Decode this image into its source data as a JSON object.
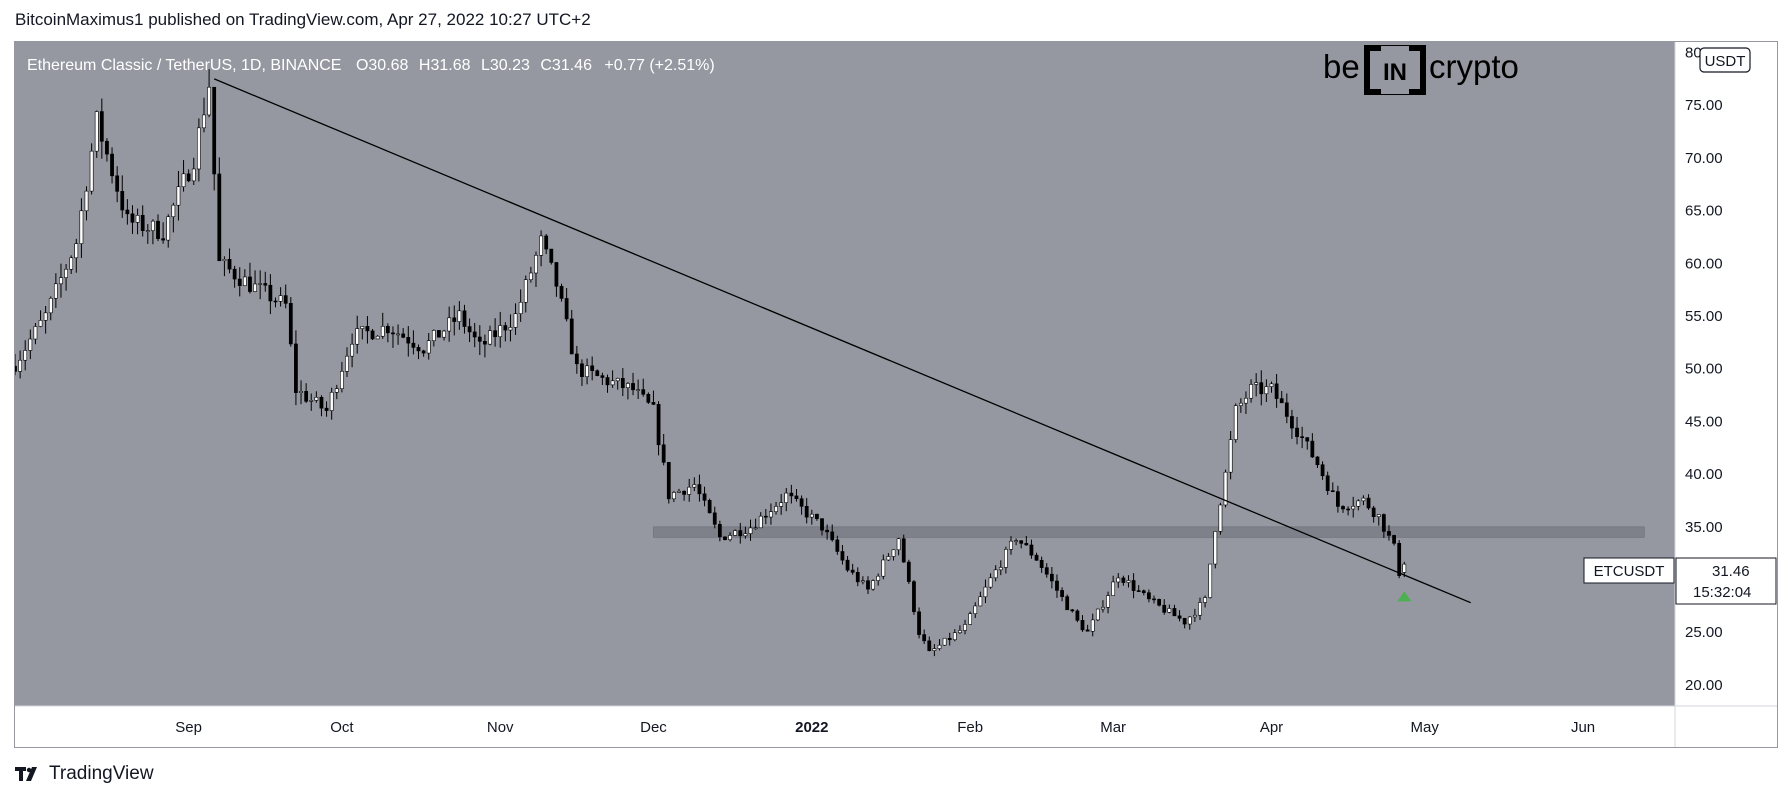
{
  "header": {
    "published_text": "BitcoinMaximus1 published on TradingView.com, Apr 27, 2022 10:27 UTC+2"
  },
  "chart_data": {
    "type": "candlestick",
    "symbol_title": "Ethereum Classic / TetherUS, 1D, BINANCE",
    "ohlc_labels": {
      "o_label": "O",
      "o_value": "30.68",
      "h_label": "H",
      "h_value": "31.68",
      "l_label": "L",
      "l_value": "30.23",
      "c_label": "C",
      "c_value": "31.46",
      "change": "+0.77 (+2.51%)"
    },
    "currency_badge": "USDT",
    "brand_logo": {
      "left": "be",
      "middle": "IN",
      "right": "crypto"
    },
    "price_label": {
      "ticker": "ETCUSDT",
      "price": "31.46",
      "countdown": "15:32:04"
    },
    "y_axis": {
      "ylim": [
        18.0,
        81.0
      ],
      "ticks": [
        "80.00",
        "75.00",
        "70.00",
        "65.00",
        "60.00",
        "55.00",
        "50.00",
        "45.00",
        "40.00",
        "35.00",
        "30.00",
        "25.00",
        "20.00"
      ]
    },
    "x_axis": {
      "start": "2021-07-29",
      "end": "2022-06-19",
      "labels": [
        {
          "date": "2021-09-01",
          "label": "Sep"
        },
        {
          "date": "2021-10-01",
          "label": "Oct"
        },
        {
          "date": "2021-11-01",
          "label": "Nov"
        },
        {
          "date": "2021-12-01",
          "label": "Dec"
        },
        {
          "date": "2022-01-01",
          "label": "2022"
        },
        {
          "date": "2022-02-01",
          "label": "Feb"
        },
        {
          "date": "2022-03-01",
          "label": "Mar"
        },
        {
          "date": "2022-04-01",
          "label": "Apr"
        },
        {
          "date": "2022-05-01",
          "label": "May"
        },
        {
          "date": "2022-06-01",
          "label": "Jun"
        }
      ]
    },
    "key_points": [
      {
        "date": "2021-07-29",
        "price": 50.5
      },
      {
        "date": "2021-08-04",
        "price": 55.0
      },
      {
        "date": "2021-08-10",
        "price": 62.0
      },
      {
        "date": "2021-08-14",
        "price": 73.5
      },
      {
        "date": "2021-08-20",
        "price": 64.0
      },
      {
        "date": "2021-08-27",
        "price": 63.0
      },
      {
        "date": "2021-09-02",
        "price": 70.0
      },
      {
        "date": "2021-09-05",
        "price": 77.0
      },
      {
        "date": "2021-09-07",
        "price": 60.0
      },
      {
        "date": "2021-09-13",
        "price": 58.0
      },
      {
        "date": "2021-09-20",
        "price": 56.0
      },
      {
        "date": "2021-09-22",
        "price": 48.0
      },
      {
        "date": "2021-09-28",
        "price": 46.0
      },
      {
        "date": "2021-10-03",
        "price": 53.0
      },
      {
        "date": "2021-10-10",
        "price": 54.0
      },
      {
        "date": "2021-10-17",
        "price": 52.0
      },
      {
        "date": "2021-10-24",
        "price": 55.0
      },
      {
        "date": "2021-10-28",
        "price": 52.0
      },
      {
        "date": "2021-11-04",
        "price": 55.0
      },
      {
        "date": "2021-11-09",
        "price": 62.0
      },
      {
        "date": "2021-11-12",
        "price": 58.0
      },
      {
        "date": "2021-11-16",
        "price": 50.0
      },
      {
        "date": "2021-11-21",
        "price": 49.0
      },
      {
        "date": "2021-11-27",
        "price": 48.0
      },
      {
        "date": "2021-12-01",
        "price": 46.0
      },
      {
        "date": "2021-12-04",
        "price": 38.0
      },
      {
        "date": "2021-12-09",
        "price": 39.0
      },
      {
        "date": "2021-12-14",
        "price": 34.0
      },
      {
        "date": "2021-12-20",
        "price": 35.0
      },
      {
        "date": "2021-12-27",
        "price": 38.0
      },
      {
        "date": "2022-01-03",
        "price": 35.0
      },
      {
        "date": "2022-01-08",
        "price": 31.0
      },
      {
        "date": "2022-01-12",
        "price": 29.0
      },
      {
        "date": "2022-01-18",
        "price": 34.0
      },
      {
        "date": "2022-01-22",
        "price": 25.0
      },
      {
        "date": "2022-01-24",
        "price": 23.0
      },
      {
        "date": "2022-01-31",
        "price": 25.5
      },
      {
        "date": "2022-02-05",
        "price": 30.0
      },
      {
        "date": "2022-02-10",
        "price": 34.0
      },
      {
        "date": "2022-02-14",
        "price": 32.0
      },
      {
        "date": "2022-02-18",
        "price": 29.0
      },
      {
        "date": "2022-02-22",
        "price": 26.0
      },
      {
        "date": "2022-02-24",
        "price": 25.0
      },
      {
        "date": "2022-03-02",
        "price": 30.5
      },
      {
        "date": "2022-03-08",
        "price": 28.0
      },
      {
        "date": "2022-03-15",
        "price": 26.0
      },
      {
        "date": "2022-03-19",
        "price": 28.0
      },
      {
        "date": "2022-03-21",
        "price": 35.0
      },
      {
        "date": "2022-03-23",
        "price": 40.0
      },
      {
        "date": "2022-03-25",
        "price": 46.0
      },
      {
        "date": "2022-03-28",
        "price": 48.0
      },
      {
        "date": "2022-04-01",
        "price": 48.0
      },
      {
        "date": "2022-04-05",
        "price": 45.0
      },
      {
        "date": "2022-04-10",
        "price": 41.0
      },
      {
        "date": "2022-04-14",
        "price": 37.0
      },
      {
        "date": "2022-04-19",
        "price": 37.5
      },
      {
        "date": "2022-04-22",
        "price": 36.0
      },
      {
        "date": "2022-04-25",
        "price": 33.0
      },
      {
        "date": "2022-04-26",
        "price": 30.68
      }
    ],
    "last_candle": {
      "date": "2022-04-27",
      "open": 30.68,
      "high": 31.68,
      "low": 30.23,
      "close": 31.46
    },
    "trendline": {
      "start": {
        "date": "2021-09-06",
        "price": 77.5
      },
      "end": {
        "date": "2022-05-10",
        "price": 27.8
      }
    },
    "support_zone": {
      "start": "2021-12-01",
      "end": "2022-06-13",
      "low": 34.0,
      "high": 35.0
    },
    "marker": {
      "type": "up-arrow",
      "date": "2022-04-27",
      "price": 28.5,
      "color": "#4caf50"
    },
    "colors": {
      "background": "#9598a1",
      "up": "#ffffff",
      "down": "#000000",
      "wick": "#000000",
      "trendline": "#000000",
      "zone": "#7b7e87",
      "axis_text": "#131722"
    }
  },
  "footer": {
    "brand": "TradingView"
  }
}
